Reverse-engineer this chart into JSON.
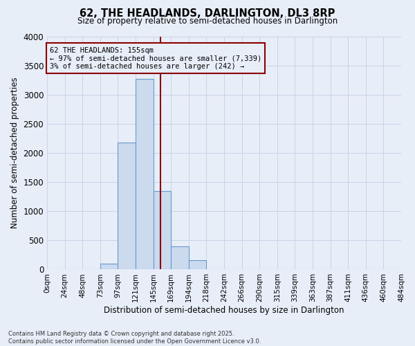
{
  "title": "62, THE HEADLANDS, DARLINGTON, DL3 8RP",
  "subtitle": "Size of property relative to semi-detached houses in Darlington",
  "xlabel": "Distribution of semi-detached houses by size in Darlington",
  "ylabel": "Number of semi-detached properties",
  "footer_line1": "Contains HM Land Registry data © Crown copyright and database right 2025.",
  "footer_line2": "Contains public sector information licensed under the Open Government Licence v3.0.",
  "annotation_line1": "62 THE HEADLANDS: 155sqm",
  "annotation_line2": "← 97% of semi-detached houses are smaller (7,339)",
  "annotation_line3": "3% of semi-detached houses are larger (242) →",
  "property_size": 155,
  "bar_indices": [
    0,
    1,
    2,
    3,
    4,
    5,
    6,
    7,
    8,
    9,
    10,
    11,
    12,
    13,
    14,
    15,
    16,
    17,
    18,
    19
  ],
  "bar_heights": [
    0,
    0,
    0,
    100,
    2175,
    3275,
    1350,
    400,
    155,
    0,
    0,
    0,
    0,
    0,
    0,
    0,
    0,
    0,
    0,
    0
  ],
  "bar_color": "#ccdaee",
  "bar_edge_color": "#6699cc",
  "vline_color": "#8b0000",
  "vline_bar_index": 6.458,
  "annotation_box_color": "#8b0000",
  "ylim": [
    0,
    4000
  ],
  "yticks": [
    0,
    500,
    1000,
    1500,
    2000,
    2500,
    3000,
    3500,
    4000
  ],
  "xtick_labels": [
    "0sqm",
    "24sqm",
    "48sqm",
    "73sqm",
    "97sqm",
    "121sqm",
    "145sqm",
    "169sqm",
    "194sqm",
    "218sqm",
    "242sqm",
    "266sqm",
    "290sqm",
    "315sqm",
    "339sqm",
    "363sqm",
    "387sqm",
    "411sqm",
    "436sqm",
    "460sqm",
    "484sqm"
  ],
  "grid_color": "#c8d4e8",
  "background_color": "#e8eef8"
}
